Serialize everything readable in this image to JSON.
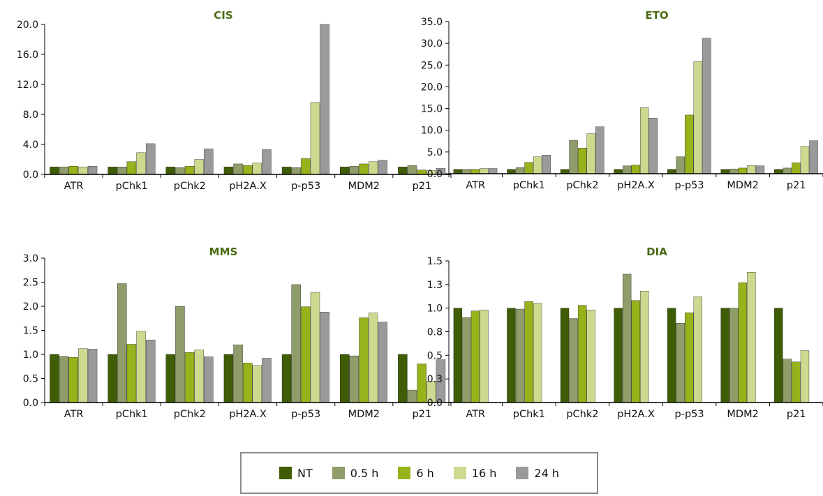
{
  "colors": {
    "series": [
      "#3f5d04",
      "#8f9d6a",
      "#97b31b",
      "#cdd98e",
      "#9a9a9a"
    ],
    "title": "#4a6a12",
    "bar_stroke": "#202020"
  },
  "legend": {
    "items": [
      {
        "label": "NT"
      },
      {
        "label": "0.5 h"
      },
      {
        "label": "6 h"
      },
      {
        "label": "16 h"
      },
      {
        "label": "24 h"
      }
    ]
  },
  "chart_data": [
    {
      "type": "bar",
      "title": "CIS",
      "categories": [
        "ATR",
        "pChk1",
        "pChk2",
        "pH2A.X",
        "p-p53",
        "MDM2",
        "p21"
      ],
      "ylim": [
        0,
        20
      ],
      "yticks": [
        "0.0",
        "4.0",
        "8.0",
        "12.0",
        "16.0",
        "20.0"
      ],
      "series": [
        {
          "name": "NT",
          "values": [
            1.0,
            1.0,
            1.0,
            1.0,
            1.0,
            1.0,
            1.0
          ]
        },
        {
          "name": "0.5 h",
          "values": [
            1.0,
            1.0,
            0.9,
            1.4,
            0.9,
            1.1,
            1.2
          ]
        },
        {
          "name": "6 h",
          "values": [
            1.1,
            1.7,
            1.1,
            1.2,
            2.1,
            1.4,
            0.6
          ]
        },
        {
          "name": "16 h",
          "values": [
            1.0,
            2.9,
            2.0,
            1.5,
            9.6,
            1.7,
            0.5
          ]
        },
        {
          "name": "24 h",
          "values": [
            1.1,
            4.1,
            3.4,
            3.3,
            20.0,
            1.9,
            0.8
          ]
        }
      ]
    },
    {
      "type": "bar",
      "title": "ETO",
      "categories": [
        "ATR",
        "pChk1",
        "pChk2",
        "pH2A.X",
        "p-p53",
        "MDM2",
        "p21"
      ],
      "ylim": [
        0,
        35
      ],
      "yticks": [
        "0.0",
        "5.0",
        "10.0",
        "15.0",
        "20.0",
        "25.0",
        "30.0",
        "35.0"
      ],
      "series": [
        {
          "name": "NT",
          "values": [
            1.0,
            1.0,
            1.0,
            1.0,
            1.0,
            1.0,
            1.0
          ]
        },
        {
          "name": "0.5 h",
          "values": [
            1.0,
            1.4,
            7.7,
            1.8,
            3.9,
            1.1,
            1.3
          ]
        },
        {
          "name": "6 h",
          "values": [
            1.0,
            2.6,
            5.9,
            2.0,
            13.5,
            1.3,
            2.5
          ]
        },
        {
          "name": "16 h",
          "values": [
            1.2,
            3.9,
            9.2,
            15.2,
            25.8,
            1.9,
            6.3
          ]
        },
        {
          "name": "24 h",
          "values": [
            1.2,
            4.3,
            10.8,
            12.8,
            31.2,
            1.8,
            7.6
          ]
        }
      ]
    },
    {
      "type": "bar",
      "title": "MMS",
      "categories": [
        "ATR",
        "pChk1",
        "pChk2",
        "pH2A.X",
        "p-p53",
        "MDM2",
        "p21"
      ],
      "ylim": [
        0,
        3
      ],
      "yticks": [
        "0.0",
        "0.5",
        "1.0",
        "1.5",
        "2.0",
        "2.5",
        "3.0"
      ],
      "series": [
        {
          "name": "NT",
          "values": [
            1.0,
            1.0,
            1.0,
            1.0,
            1.0,
            1.0,
            1.0
          ]
        },
        {
          "name": "0.5 h",
          "values": [
            0.96,
            2.47,
            2.0,
            1.2,
            2.45,
            0.97,
            0.26
          ]
        },
        {
          "name": "6 h",
          "values": [
            0.94,
            1.21,
            1.04,
            0.82,
            1.99,
            1.76,
            0.8
          ]
        },
        {
          "name": "16 h",
          "values": [
            1.12,
            1.48,
            1.09,
            0.77,
            2.29,
            1.86,
            0.44
          ]
        },
        {
          "name": "24 h",
          "values": [
            1.11,
            1.3,
            0.95,
            0.92,
            1.88,
            1.67,
            0.89
          ]
        }
      ]
    },
    {
      "type": "bar",
      "title": "DIA",
      "categories": [
        "ATR",
        "pChk1",
        "pChk2",
        "pH2A.X",
        "p-p53",
        "MDM2",
        "p21"
      ],
      "ylim": [
        0,
        1.5
      ],
      "ytick_values": [
        0,
        0.25,
        0.5,
        0.75,
        1.0,
        1.25,
        1.5
      ],
      "yticks": [
        "0.0",
        "0.3",
        "0.5",
        "0.8",
        "1.0",
        "1.3",
        "1.5"
      ],
      "series": [
        {
          "name": "NT",
          "values": [
            1.0,
            1.0,
            1.0,
            1.0,
            1.0,
            1.0,
            1.0
          ]
        },
        {
          "name": "0.5 h",
          "values": [
            0.9,
            0.99,
            0.89,
            1.36,
            0.84,
            1.0,
            0.46
          ]
        },
        {
          "name": "6 h",
          "values": [
            0.97,
            1.07,
            1.03,
            1.08,
            0.95,
            1.27,
            0.43
          ]
        },
        {
          "name": "16 h",
          "values": [
            0.98,
            1.05,
            0.98,
            1.18,
            1.12,
            1.38,
            0.55
          ]
        }
      ]
    }
  ]
}
